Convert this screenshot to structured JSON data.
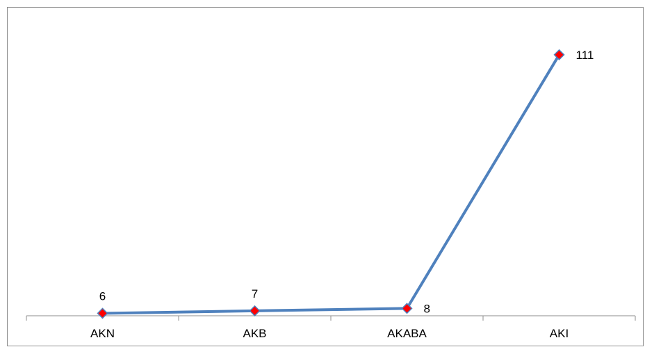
{
  "chart_data": {
    "type": "line",
    "title": "",
    "xlabel": "",
    "ylabel": "",
    "categories": [
      "AKN",
      "AKB",
      "AKABA",
      "AKI"
    ],
    "series": [
      {
        "values": [
          6,
          7,
          8,
          111
        ],
        "data_labels": [
          "6",
          "7",
          "8",
          "111"
        ]
      }
    ],
    "ylim": [
      5,
      120
    ],
    "grid": false,
    "legend": "none",
    "colors": {
      "line": "#4f81bd",
      "marker_fill": "#ff0000",
      "marker_stroke": "#4f81bd",
      "axis": "#8c8c8c",
      "frame": "#8c8c8c"
    }
  }
}
